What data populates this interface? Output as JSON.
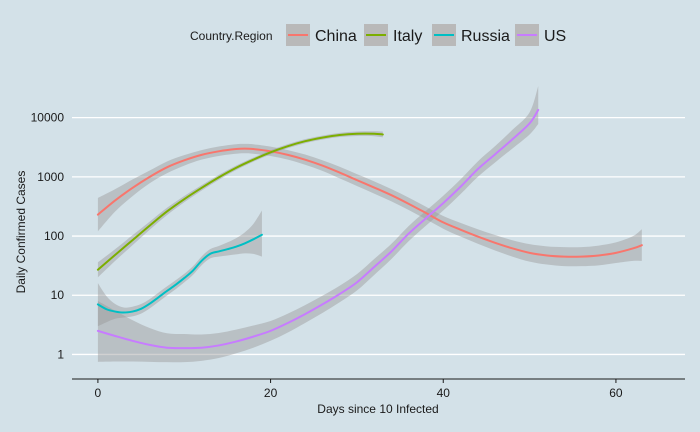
{
  "chart_data": {
    "type": "line",
    "title": "",
    "xlabel": "Days since 10 Infected",
    "ylabel": "Daily Confirmed Cases",
    "y_scale": "log10",
    "xlim": [
      -3,
      68
    ],
    "ylim": [
      0.4,
      40000
    ],
    "x_ticks": [
      0,
      20,
      40,
      60
    ],
    "y_ticks": [
      1,
      10,
      100,
      1000,
      10000
    ],
    "y_tick_labels": [
      "1",
      "10",
      "100",
      "1000",
      "10000"
    ],
    "grid": "horizontal major lines",
    "legend": {
      "title": "Country.Region",
      "placement": "top"
    },
    "series": [
      {
        "name": "China",
        "color": "#f8766d",
        "x": [
          0,
          2,
          4,
          6,
          8,
          10,
          12,
          14,
          16,
          17,
          18,
          20,
          22,
          24,
          26,
          28,
          30,
          32,
          34,
          36,
          38,
          40,
          42,
          44,
          46,
          48,
          50,
          52,
          54,
          56,
          58,
          60,
          62,
          63
        ],
        "y": [
          230,
          400,
          650,
          1000,
          1450,
          1900,
          2350,
          2700,
          2950,
          3000,
          2950,
          2700,
          2350,
          1950,
          1550,
          1180,
          880,
          660,
          490,
          350,
          245,
          170,
          128,
          98,
          77,
          62,
          52,
          47,
          45,
          45,
          47,
          52,
          62,
          70
        ],
        "band_lower": [
          120,
          260,
          470,
          780,
          1150,
          1550,
          1950,
          2250,
          2450,
          2500,
          2450,
          2250,
          1950,
          1600,
          1260,
          940,
          700,
          520,
          385,
          275,
          192,
          133,
          98,
          74,
          57,
          45,
          37,
          33,
          31,
          31,
          32,
          35,
          38,
          38
        ],
        "band_upper": [
          440,
          620,
          900,
          1280,
          1820,
          2330,
          2830,
          3250,
          3550,
          3600,
          3550,
          3240,
          2830,
          2380,
          1910,
          1480,
          1110,
          840,
          620,
          445,
          313,
          218,
          167,
          130,
          104,
          85,
          73,
          67,
          65,
          65,
          69,
          78,
          100,
          130
        ]
      },
      {
        "name": "Italy",
        "color": "#7cae00",
        "x": [
          0,
          2,
          4,
          6,
          8,
          10,
          12,
          14,
          16,
          18,
          20,
          22,
          24,
          26,
          28,
          30,
          32,
          33
        ],
        "y": [
          27,
          48,
          85,
          150,
          260,
          420,
          650,
          980,
          1420,
          1950,
          2600,
          3300,
          4000,
          4600,
          5100,
          5350,
          5350,
          5200
        ],
        "band_lower": [
          20,
          38,
          70,
          128,
          226,
          372,
          585,
          890,
          1300,
          1800,
          2400,
          3050,
          3700,
          4250,
          4700,
          4900,
          4850,
          4650
        ],
        "band_upper": [
          36,
          60,
          103,
          175,
          300,
          475,
          722,
          1080,
          1550,
          2110,
          2820,
          3570,
          4330,
          4980,
          5530,
          5840,
          5900,
          5820
        ]
      },
      {
        "name": "Russia",
        "color": "#00bfc4",
        "x": [
          0,
          1,
          2,
          3,
          4,
          5,
          6,
          7,
          8,
          9,
          10,
          11,
          12,
          13,
          14,
          15,
          16,
          17,
          18,
          19
        ],
        "y": [
          7,
          5.8,
          5.3,
          5.1,
          5.3,
          5.9,
          7.2,
          9.2,
          11.8,
          15,
          19.5,
          26,
          38,
          50,
          55,
          60,
          66,
          75,
          88,
          105
        ],
        "band_lower": [
          3,
          3.5,
          4,
          4.2,
          4.4,
          4.9,
          6,
          7.7,
          9.9,
          12.6,
          16.5,
          22,
          32,
          42,
          45,
          47,
          49,
          51,
          50,
          45
        ],
        "band_upper": [
          16,
          9.6,
          7.1,
          6.2,
          6.4,
          7.1,
          8.6,
          11,
          14.1,
          17.9,
          23,
          30.7,
          45,
          60,
          68,
          78,
          92,
          115,
          160,
          270
        ]
      },
      {
        "name": "US",
        "color": "#c77cff",
        "x": [
          0,
          2,
          4,
          6,
          8,
          10,
          12,
          14,
          16,
          18,
          20,
          22,
          24,
          26,
          28,
          30,
          32,
          34,
          36,
          38,
          40,
          42,
          44,
          46,
          48,
          50,
          51
        ],
        "y": [
          2.5,
          2.05,
          1.7,
          1.45,
          1.3,
          1.28,
          1.3,
          1.42,
          1.65,
          2.0,
          2.5,
          3.4,
          4.8,
          7,
          10.5,
          16.5,
          30,
          55,
          110,
          200,
          360,
          680,
          1350,
          2400,
          4300,
          8000,
          13500
        ],
        "band_lower": [
          0.75,
          0.76,
          0.76,
          0.75,
          0.74,
          0.74,
          0.78,
          0.87,
          1.04,
          1.3,
          1.7,
          2.35,
          3.4,
          5,
          7.6,
          12,
          22,
          41,
          82,
          150,
          270,
          510,
          1000,
          1750,
          3000,
          5200,
          7800
        ],
        "band_upper": [
          8,
          5.5,
          3.8,
          2.8,
          2.28,
          2.21,
          2.17,
          2.3,
          2.62,
          3.08,
          3.68,
          4.9,
          6.8,
          9.8,
          14.5,
          22.7,
          41,
          74,
          148,
          267,
          480,
          907,
          1820,
          3300,
          6200,
          12300,
          34000
        ]
      }
    ]
  }
}
